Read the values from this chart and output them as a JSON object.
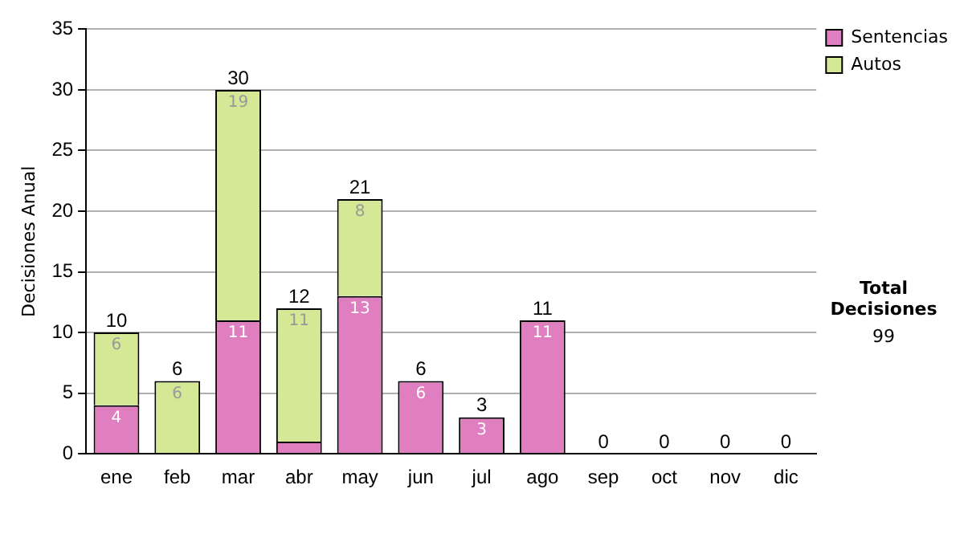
{
  "chart_data": {
    "type": "bar",
    "stacked": true,
    "categories": [
      "ene",
      "feb",
      "mar",
      "abr",
      "may",
      "jun",
      "jul",
      "ago",
      "sep",
      "oct",
      "nov",
      "dic"
    ],
    "series": [
      {
        "name": "Sentencias",
        "color": "#e07fc0",
        "values": [
          4,
          0,
          11,
          1,
          13,
          6,
          3,
          11,
          0,
          0,
          0,
          0
        ],
        "value_labels": [
          "4",
          null,
          "11",
          null,
          "13",
          "6",
          "3",
          "11",
          null,
          null,
          null,
          null
        ]
      },
      {
        "name": "Autos",
        "color": "#d4e896",
        "values": [
          6,
          6,
          19,
          11,
          8,
          0,
          0,
          0,
          0,
          0,
          0,
          0
        ],
        "value_labels": [
          "6",
          "6",
          "19",
          "11",
          "8",
          null,
          null,
          null,
          null,
          null,
          null,
          null
        ]
      }
    ],
    "totals": [
      "10",
      "6",
      "30",
      "12",
      "21",
      "6",
      "3",
      "11",
      "0",
      "0",
      "0",
      "0"
    ],
    "ylabel": "Decisiones Anual",
    "ylim": [
      0,
      35
    ],
    "yticks": [
      0,
      5,
      10,
      15,
      20,
      25,
      30,
      35
    ],
    "grid": "y",
    "legend": "right",
    "annotations": [
      "Total Decisiones",
      "99"
    ]
  }
}
